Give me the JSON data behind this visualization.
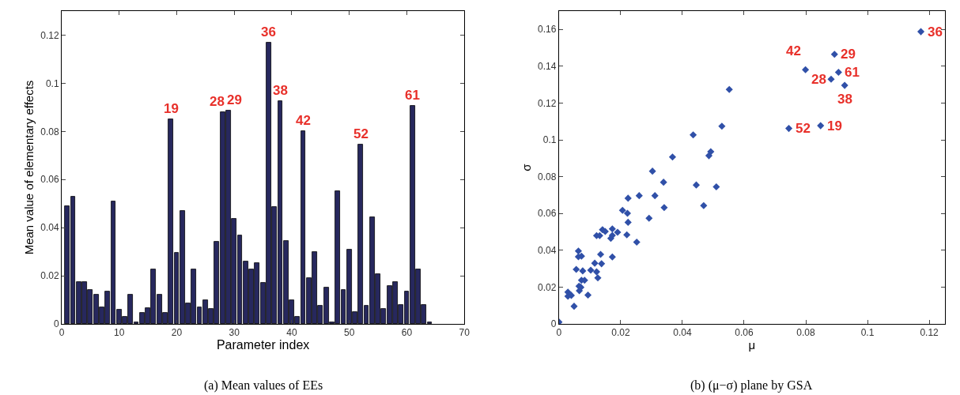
{
  "chart_data": [
    {
      "type": "bar",
      "xlabel": "Parameter index",
      "ylabel": "Mean value of elementary effects",
      "x": [
        1,
        2,
        3,
        4,
        5,
        6,
        7,
        8,
        9,
        10,
        11,
        12,
        13,
        14,
        15,
        16,
        17,
        18,
        19,
        20,
        21,
        22,
        23,
        24,
        25,
        26,
        27,
        28,
        29,
        30,
        31,
        32,
        33,
        34,
        35,
        36,
        37,
        38,
        39,
        40,
        41,
        42,
        43,
        44,
        45,
        46,
        47,
        48,
        49,
        50,
        51,
        52,
        53,
        54,
        55,
        56,
        57,
        58,
        59,
        60,
        61,
        62,
        63,
        64
      ],
      "series": [
        {
          "color": "#27285e",
          "values": [
            0.049,
            0.053,
            0.0175,
            0.0175,
            0.014,
            0.012,
            0.007,
            0.0135,
            0.051,
            0.006,
            0.003,
            0.012,
            0.0005,
            0.0045,
            0.0065,
            0.0227,
            0.012,
            0.0045,
            0.085,
            0.0296,
            0.047,
            0.0085,
            0.0227,
            0.007,
            0.0097,
            0.0063,
            0.034,
            0.088,
            0.0885,
            0.0437,
            0.0367,
            0.026,
            0.0225,
            0.0253,
            0.017,
            0.117,
            0.0487,
            0.0925,
            0.0345,
            0.01,
            0.003,
            0.08,
            0.019,
            0.03,
            0.0075,
            0.015,
            0.0005,
            0.055,
            0.014,
            0.031,
            0.005,
            0.0745,
            0.0075,
            0.0443,
            0.0207,
            0.0063,
            0.0158,
            0.0175,
            0.008,
            0.0135,
            0.0905,
            0.0225,
            0.008,
            0.0008
          ]
        }
      ],
      "xlim": [
        0,
        70
      ],
      "xticks": [
        0,
        10,
        20,
        30,
        40,
        50,
        60,
        70
      ],
      "ylim": [
        0,
        0.13
      ],
      "yticks": [
        0,
        {
          "value": 0.02,
          "label": "0.02"
        },
        {
          "value": 0.04,
          "label": "0.04"
        },
        {
          "value": 0.06,
          "label": "0.06"
        },
        {
          "value": 0.08,
          "label": "0.08"
        },
        {
          "value": 0.1,
          "label": "0.1"
        },
        {
          "value": 0.12,
          "label": "0.12"
        }
      ],
      "annotations": [
        {
          "text": "19",
          "x": 19,
          "y": 0.085
        },
        {
          "text": "28",
          "x": 28,
          "y": 0.088
        },
        {
          "text": "29",
          "x": 29,
          "y": 0.0885
        },
        {
          "text": "36",
          "x": 36,
          "y": 0.117
        },
        {
          "text": "38",
          "x": 38,
          "y": 0.0925
        },
        {
          "text": "42",
          "x": 42,
          "y": 0.08
        },
        {
          "text": "52",
          "x": 52,
          "y": 0.0745
        },
        {
          "text": "61",
          "x": 61,
          "y": 0.0905
        },
        "(a) Mean values of EEs"
      ]
    },
    {
      "type": "scatter",
      "xlabel": "μ",
      "ylabel": "σ",
      "marker": "diamond",
      "series": [
        {
          "color": "#3050a8",
          "x": [
            0,
            0.0029,
            0.0029,
            0.004,
            0.0049,
            0.0056,
            0.0063,
            0.0063,
            0.0073,
            0.0077,
            0.0065,
            0.0066,
            0.0071,
            0.0073,
            0.0083,
            0.0094,
            0.0103,
            0.0116,
            0.0122,
            0.0126,
            0.0122,
            0.0132,
            0.0135,
            0.0138,
            0.0141,
            0.015,
            0.0168,
            0.0173,
            0.0173,
            0.0173,
            0.019,
            0.0206,
            0.0222,
            0.0224,
            0.022,
            0.0224,
            0.0252,
            0.026,
            0.0292,
            0.0303,
            0.0311,
            0.0339,
            0.0341,
            0.0368,
            0.0435,
            0.0445,
            0.0469,
            0.0486,
            0.0492,
            0.051,
            0.0528,
            0.0552,
            0.1173,
            0.0893,
            0.0799,
            0.0906,
            0.0882,
            0.0926,
            0.0745,
            0.0848
          ],
          "values": [
            0.001,
            0.0173,
            0.015,
            0.0155,
            0.0096,
            0.0296,
            0.0396,
            0.0365,
            0.0368,
            0.0288,
            0.0205,
            0.018,
            0.0199,
            0.0237,
            0.0237,
            0.0157,
            0.0292,
            0.033,
            0.0283,
            0.025,
            0.048,
            0.048,
            0.0378,
            0.0327,
            0.0512,
            0.0502,
            0.0465,
            0.0481,
            0.0516,
            0.0364,
            0.0498,
            0.0617,
            0.0601,
            0.0552,
            0.0484,
            0.0683,
            0.0444,
            0.0697,
            0.0574,
            0.083,
            0.0697,
            0.077,
            0.0632,
            0.0907,
            0.1027,
            0.0755,
            0.0643,
            0.0914,
            0.0936,
            0.0745,
            0.1074,
            0.1274,
            0.1588,
            0.1465,
            0.1381,
            0.1367,
            0.133,
            0.1296,
            0.1062,
            0.1077
          ]
        }
      ],
      "xlim": [
        0,
        0.125
      ],
      "xticks": [
        0,
        {
          "value": 0.02,
          "label": "0.02"
        },
        {
          "value": 0.04,
          "label": "0.04"
        },
        {
          "value": 0.06,
          "label": "0.06"
        },
        {
          "value": 0.08,
          "label": "0.08"
        },
        {
          "value": 0.1,
          "label": "0.1"
        },
        {
          "value": 0.12,
          "label": "0.12"
        }
      ],
      "ylim": [
        0,
        0.17
      ],
      "yticks": [
        0,
        {
          "value": 0.02,
          "label": "0.02"
        },
        {
          "value": 0.04,
          "label": "0.04"
        },
        {
          "value": 0.06,
          "label": "0.06"
        },
        {
          "value": 0.08,
          "label": "0.08"
        },
        {
          "value": 0.1,
          "label": "0.1"
        },
        {
          "value": 0.12,
          "label": "0.12"
        },
        {
          "value": 0.14,
          "label": "0.14"
        },
        {
          "value": 0.16,
          "label": "0.16"
        }
      ],
      "annotations": [
        {
          "text": "36",
          "x": 0.1173,
          "y": 0.1588
        },
        {
          "text": "29",
          "x": 0.0893,
          "y": 0.1465
        },
        {
          "text": "42",
          "x": 0.0799,
          "y": 0.1381
        },
        {
          "text": "61",
          "x": 0.0906,
          "y": 0.1367
        },
        {
          "text": "28",
          "x": 0.0882,
          "y": 0.133
        },
        {
          "text": "38",
          "x": 0.0926,
          "y": 0.1296
        },
        {
          "text": "52",
          "x": 0.0745,
          "y": 0.1062
        },
        {
          "text": "19",
          "x": 0.0848,
          "y": 0.1077
        },
        "(b) (μ−σ) plane by GSA"
      ]
    }
  ]
}
